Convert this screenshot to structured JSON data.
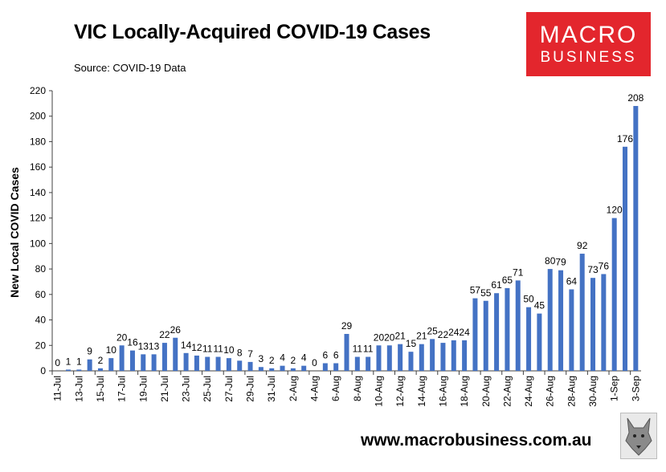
{
  "header": {
    "title": "VIC Locally-Acquired COVID-19 Cases",
    "source": "Source: COVID-19 Data"
  },
  "logo": {
    "line1": "MACRO",
    "line2": "BUSINESS"
  },
  "footer": {
    "url": "www.macrobusiness.com.au",
    "emblem_icon": "wolf-head-icon"
  },
  "colors": {
    "bar": "#4472c4",
    "brand_red": "#e3262d",
    "axis": "#404040"
  },
  "chart_data": {
    "type": "bar",
    "title": "VIC Locally-Acquired COVID-19 Cases",
    "xlabel": "",
    "ylabel": "New Local COVID Cases",
    "ylim": [
      0,
      220
    ],
    "yticks": [
      0,
      20,
      40,
      60,
      80,
      100,
      120,
      140,
      160,
      180,
      200,
      220
    ],
    "grid": false,
    "legend": "none",
    "categories": [
      "11-Jul",
      "12-Jul",
      "13-Jul",
      "14-Jul",
      "15-Jul",
      "16-Jul",
      "17-Jul",
      "18-Jul",
      "19-Jul",
      "20-Jul",
      "21-Jul",
      "22-Jul",
      "23-Jul",
      "24-Jul",
      "25-Jul",
      "26-Jul",
      "27-Jul",
      "28-Jul",
      "29-Jul",
      "30-Jul",
      "31-Jul",
      "1-Aug",
      "2-Aug",
      "3-Aug",
      "4-Aug",
      "5-Aug",
      "6-Aug",
      "7-Aug",
      "8-Aug",
      "9-Aug",
      "10-Aug",
      "11-Aug",
      "12-Aug",
      "13-Aug",
      "14-Aug",
      "15-Aug",
      "16-Aug",
      "17-Aug",
      "18-Aug",
      "19-Aug",
      "20-Aug",
      "21-Aug",
      "22-Aug",
      "23-Aug",
      "24-Aug",
      "25-Aug",
      "26-Aug",
      "27-Aug",
      "28-Aug",
      "29-Aug",
      "30-Aug",
      "31-Aug",
      "1-Sep",
      "2-Sep",
      "3-Sep"
    ],
    "tick_labels": [
      "11-Jul",
      "13-Jul",
      "15-Jul",
      "17-Jul",
      "19-Jul",
      "21-Jul",
      "23-Jul",
      "25-Jul",
      "27-Jul",
      "29-Jul",
      "31-Jul",
      "2-Aug",
      "4-Aug",
      "6-Aug",
      "8-Aug",
      "10-Aug",
      "12-Aug",
      "14-Aug",
      "16-Aug",
      "18-Aug",
      "20-Aug",
      "22-Aug",
      "24-Aug",
      "26-Aug",
      "28-Aug",
      "30-Aug",
      "1-Sep",
      "3-Sep"
    ],
    "values": [
      0,
      1,
      1,
      9,
      2,
      10,
      20,
      16,
      13,
      13,
      22,
      26,
      14,
      12,
      11,
      11,
      10,
      8,
      7,
      3,
      2,
      4,
      2,
      4,
      0,
      6,
      6,
      29,
      11,
      11,
      20,
      20,
      21,
      15,
      21,
      25,
      22,
      24,
      24,
      57,
      55,
      61,
      65,
      71,
      50,
      45,
      80,
      79,
      64,
      92,
      73,
      76,
      120,
      176,
      208
    ]
  }
}
